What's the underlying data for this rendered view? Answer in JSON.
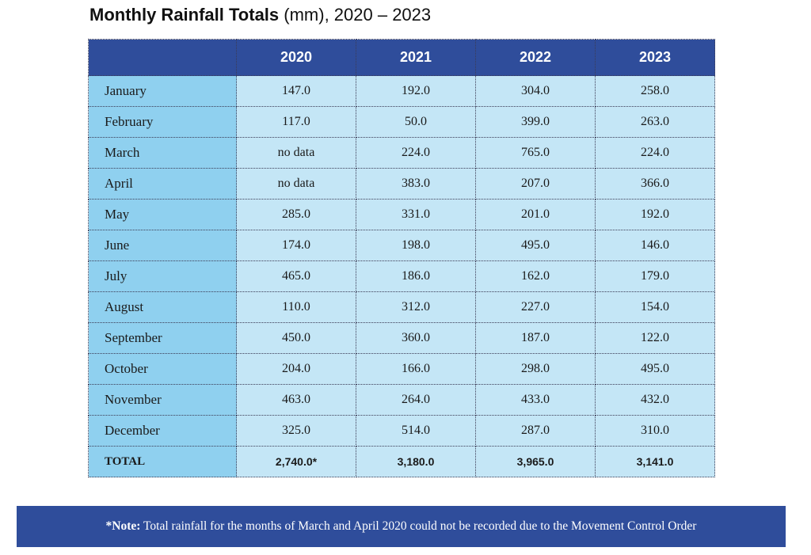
{
  "title": {
    "bold": "Monthly Rainfall Totals",
    "rest": " (mm), 2020 – 2023"
  },
  "table": {
    "columns": [
      "2020",
      "2021",
      "2022",
      "2023"
    ],
    "rows": [
      {
        "month": "January",
        "values": [
          "147.0",
          "192.0",
          "304.0",
          "258.0"
        ]
      },
      {
        "month": "February",
        "values": [
          "117.0",
          "50.0",
          "399.0",
          "263.0"
        ]
      },
      {
        "month": "March",
        "values": [
          "no data",
          "224.0",
          "765.0",
          "224.0"
        ]
      },
      {
        "month": "April",
        "values": [
          "no data",
          "383.0",
          "207.0",
          "366.0"
        ]
      },
      {
        "month": "May",
        "values": [
          "285.0",
          "331.0",
          "201.0",
          "192.0"
        ]
      },
      {
        "month": "June",
        "values": [
          "174.0",
          "198.0",
          "495.0",
          "146.0"
        ]
      },
      {
        "month": "July",
        "values": [
          "465.0",
          "186.0",
          "162.0",
          "179.0"
        ]
      },
      {
        "month": "August",
        "values": [
          "110.0",
          "312.0",
          "227.0",
          "154.0"
        ]
      },
      {
        "month": "September",
        "values": [
          "450.0",
          "360.0",
          "187.0",
          "122.0"
        ]
      },
      {
        "month": "October",
        "values": [
          "204.0",
          "166.0",
          "298.0",
          "495.0"
        ]
      },
      {
        "month": "November",
        "values": [
          "463.0",
          "264.0",
          "433.0",
          "432.0"
        ]
      },
      {
        "month": "December",
        "values": [
          "325.0",
          "514.0",
          "287.0",
          "310.0"
        ]
      }
    ],
    "total": {
      "label": "TOTAL",
      "values": [
        "2,740.0*",
        "3,180.0",
        "3,965.0",
        "3,141.0"
      ]
    }
  },
  "note": {
    "label": "*Note:",
    "text": " Total rainfall for the months of March and April 2020 could not be recorded due to the Movement Control Order"
  },
  "colors": {
    "header_bg": "#2f4d9b",
    "month_col_bg": "#8fd0ef",
    "cell_bg": "#c4e6f6",
    "note_bg": "#2f4d9b"
  }
}
